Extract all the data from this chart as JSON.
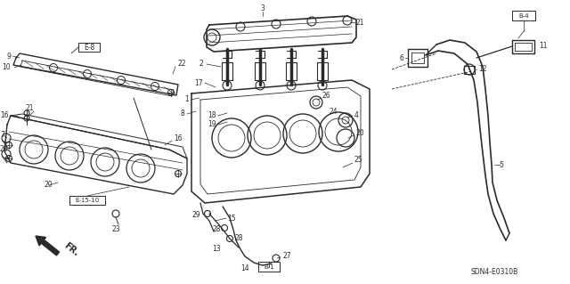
{
  "bg_color": "#ffffff",
  "diagram_code": "SDN4-E0310B",
  "lc": "#2a2a2a",
  "labels": {
    "E8": "E-8",
    "E1510": "E-15-10",
    "B4": "B-4",
    "B1": "B-1",
    "FR": "FR."
  }
}
